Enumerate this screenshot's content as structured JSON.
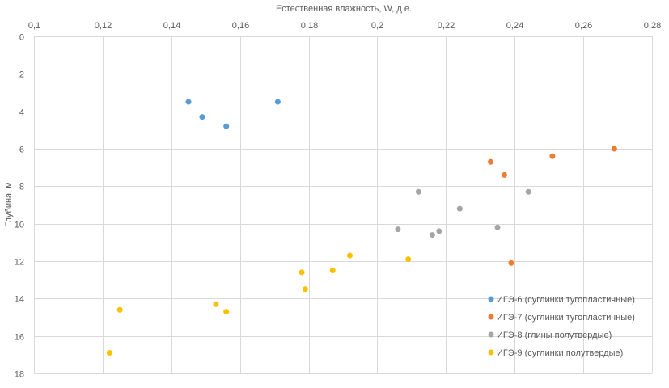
{
  "chart_data": {
    "type": "scatter",
    "title": "",
    "xlabel": "Естественная влажность, W, д.е.",
    "ylabel": "Глубина, м",
    "x_axis_position": "top",
    "y_axis_reversed": true,
    "xlim": [
      0.1,
      0.28
    ],
    "ylim": [
      0,
      18
    ],
    "x_ticks": [
      "0,1",
      "0,12",
      "0,14",
      "0,16",
      "0,18",
      "0,2",
      "0,22",
      "0,24",
      "0,26",
      "0,28"
    ],
    "y_ticks": [
      "0",
      "2",
      "4",
      "6",
      "8",
      "10",
      "12",
      "14",
      "16",
      "18"
    ],
    "grid": true,
    "legend_position": "bottom-right",
    "series": [
      {
        "name": "ИГЭ-6 (суглинки тугопластичные)",
        "color": "#5b9bd5",
        "points": [
          [
            0.145,
            3.5
          ],
          [
            0.149,
            4.3
          ],
          [
            0.156,
            4.8
          ],
          [
            0.171,
            3.5
          ]
        ]
      },
      {
        "name": "ИГЭ-7 (суглинки тугопластичные)",
        "color": "#ed7d31",
        "points": [
          [
            0.233,
            6.7
          ],
          [
            0.237,
            7.4
          ],
          [
            0.251,
            6.4
          ],
          [
            0.269,
            6.0
          ],
          [
            0.239,
            12.1
          ]
        ]
      },
      {
        "name": "ИГЭ-8 (глины полутвердые)",
        "color": "#a5a5a5",
        "points": [
          [
            0.212,
            8.3
          ],
          [
            0.224,
            9.2
          ],
          [
            0.244,
            8.3
          ],
          [
            0.206,
            10.3
          ],
          [
            0.216,
            10.6
          ],
          [
            0.218,
            10.4
          ],
          [
            0.235,
            10.2
          ]
        ]
      },
      {
        "name": "ИГЭ-9 (суглинки полутвердые)",
        "color": "#ffc000",
        "points": [
          [
            0.125,
            14.6
          ],
          [
            0.122,
            16.9
          ],
          [
            0.153,
            14.3
          ],
          [
            0.156,
            14.7
          ],
          [
            0.178,
            12.6
          ],
          [
            0.179,
            13.5
          ],
          [
            0.187,
            12.5
          ],
          [
            0.192,
            11.7
          ],
          [
            0.209,
            11.9
          ]
        ]
      }
    ]
  }
}
